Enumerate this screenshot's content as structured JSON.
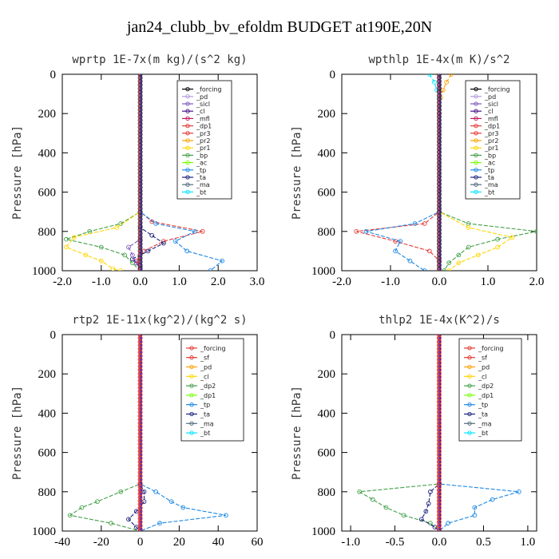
{
  "figure_title": "jan24_clubb_bv_efoldm  BUDGET at190E,20N",
  "chart_data": [
    {
      "type": "line",
      "title": "wprtp  1E-7x(m kg)/(s^2 kg)",
      "ylabel": "Pressure [hPa]",
      "xlim": [
        -2.0,
        3.0
      ],
      "ylim": [
        1000,
        0
      ],
      "x_ticks": [
        "-2.0",
        "-1.0",
        "0.0",
        "1.0",
        "2.0",
        "3.0"
      ],
      "y_ticks": [
        "0",
        "200",
        "400",
        "600",
        "800",
        "1000"
      ],
      "legend": [
        "_forcing",
        "_pd",
        "_sicl",
        "_cl",
        "_mfl",
        "_dp1",
        "_pr3",
        "_pr2",
        "_pr1",
        "_bp",
        "_ac",
        "_tp",
        "_ta",
        "_ma",
        "_bt"
      ],
      "legend_colors": [
        "#000000",
        "#b39ddb",
        "#7e57c2",
        "#4a148c",
        "#c2185b",
        "#e53935",
        "#e53935",
        "#ffa000",
        "#ffd600",
        "#43a047",
        "#76ff03",
        "#1e88e5",
        "#1a237e",
        "#546e7a",
        "#00e5ff"
      ],
      "series": [
        {
          "pressure": [
            0,
            700,
            750,
            800,
            850,
            900,
            950,
            1000
          ],
          "values": [
            0.0,
            0.0,
            0.3,
            1.6,
            0.6,
            0.1,
            -0.1,
            0.0
          ]
        },
        {
          "pressure": [
            0,
            700,
            760,
            800,
            840,
            880,
            920,
            960,
            1000
          ],
          "values": [
            0.0,
            0.0,
            -0.5,
            -1.3,
            -1.9,
            -1.0,
            -0.4,
            -0.2,
            0.0
          ]
        },
        {
          "pressure": [
            0,
            700,
            780,
            830,
            880,
            920,
            950,
            990,
            1000
          ],
          "values": [
            0.0,
            0.0,
            -0.6,
            -1.7,
            -1.9,
            -1.4,
            -1.0,
            -0.7,
            -0.5
          ]
        },
        {
          "pressure": [
            0,
            700,
            760,
            800,
            850,
            900,
            950,
            1000
          ],
          "values": [
            0.0,
            0.0,
            0.4,
            1.4,
            0.9,
            1.2,
            2.1,
            1.8
          ]
        },
        {
          "pressure": [
            0,
            780,
            820,
            860,
            900,
            940,
            980,
            1000
          ],
          "values": [
            0.0,
            0.0,
            0.3,
            0.6,
            0.2,
            -0.2,
            0.0,
            0.0
          ]
        },
        {
          "pressure": [
            0,
            840,
            880,
            920,
            960,
            1000
          ],
          "values": [
            0.0,
            0.0,
            -0.3,
            -0.2,
            -0.1,
            0.0
          ]
        }
      ],
      "series_colors": [
        "#e53935",
        "#43a047",
        "#ffd600",
        "#1e88e5",
        "#1a237e",
        "#7e57c2"
      ]
    },
    {
      "type": "line",
      "title": "wpthlp  1E-4x(m K)/s^2",
      "ylabel": "Pressure [hPa]",
      "xlim": [
        -2.0,
        2.0
      ],
      "ylim": [
        1000,
        0
      ],
      "x_ticks": [
        "-2.0",
        "-1.0",
        "0.0",
        "1.0",
        "2.0"
      ],
      "y_ticks": [
        "0",
        "200",
        "400",
        "600",
        "800",
        "1000"
      ],
      "legend": [
        "_forcing",
        "_pd",
        "_sicl",
        "_cl",
        "_mfl",
        "_dp1",
        "_pr3",
        "_pr2",
        "_pr1",
        "_bp",
        "_ac",
        "_tp",
        "_ta",
        "_ma",
        "_bt"
      ],
      "legend_colors": [
        "#000000",
        "#b39ddb",
        "#7e57c2",
        "#4a148c",
        "#c2185b",
        "#e53935",
        "#e53935",
        "#ffa000",
        "#ffd600",
        "#43a047",
        "#76ff03",
        "#1e88e5",
        "#1a237e",
        "#546e7a",
        "#00e5ff"
      ],
      "series": [
        {
          "pressure": [
            0,
            700,
            760,
            800,
            850,
            900,
            950,
            1000
          ],
          "values": [
            0.0,
            0.0,
            -0.3,
            -1.7,
            -0.9,
            -0.2,
            0.0,
            0.0
          ]
        },
        {
          "pressure": [
            0,
            700,
            760,
            800,
            840,
            880,
            920,
            960,
            1000
          ],
          "values": [
            0.0,
            0.0,
            0.6,
            2.0,
            1.2,
            0.6,
            0.4,
            0.2,
            0.1
          ]
        },
        {
          "pressure": [
            0,
            700,
            780,
            830,
            880,
            920,
            960,
            1000
          ],
          "values": [
            0.0,
            0.0,
            0.6,
            1.5,
            1.2,
            0.8,
            0.4,
            0.2
          ]
        },
        {
          "pressure": [
            0,
            700,
            760,
            800,
            850,
            900,
            950,
            1000
          ],
          "values": [
            0.0,
            0.0,
            -0.5,
            -1.5,
            -0.8,
            -0.9,
            -0.6,
            -0.3
          ]
        },
        {
          "pressure": [
            0,
            40,
            80,
            120,
            160,
            200
          ],
          "values": [
            -0.2,
            -0.1,
            -0.05,
            0.0,
            0.0,
            0.0
          ]
        },
        {
          "pressure": [
            0,
            40,
            80,
            120,
            160,
            200
          ],
          "values": [
            0.25,
            0.15,
            0.08,
            0.03,
            0.0,
            0.0
          ]
        }
      ],
      "series_colors": [
        "#e53935",
        "#43a047",
        "#ffd600",
        "#1e88e5",
        "#00e5ff",
        "#ffa000"
      ]
    },
    {
      "type": "line",
      "title": "rtp2  1E-11x(kg^2)/(kg^2 s)",
      "ylabel": "Pressure [hPa]",
      "xlim": [
        -40,
        60
      ],
      "ylim": [
        1000,
        0
      ],
      "x_ticks": [
        "-40",
        "-20",
        "0",
        "20",
        "40",
        "60"
      ],
      "y_ticks": [
        "0",
        "200",
        "400",
        "600",
        "800",
        "1000"
      ],
      "legend": [
        "_forcing",
        "_sf",
        "_pd",
        "_cl",
        "_dp2",
        "_dp1",
        "_tp",
        "_ta",
        "_ma",
        "_bt"
      ],
      "legend_colors": [
        "#e53935",
        "#e53935",
        "#ffa000",
        "#ffd600",
        "#43a047",
        "#76ff03",
        "#1e88e5",
        "#1a237e",
        "#546e7a",
        "#00e5ff"
      ],
      "series": [
        {
          "pressure": [
            0,
            760,
            800,
            850,
            880,
            920,
            960,
            1000
          ],
          "values": [
            0.0,
            0.0,
            8.0,
            16.0,
            22.0,
            44.0,
            10.0,
            0.0
          ]
        },
        {
          "pressure": [
            0,
            760,
            800,
            850,
            880,
            920,
            960,
            1000
          ],
          "values": [
            0.0,
            0.0,
            -10.0,
            -22.0,
            -30.0,
            -36.0,
            -15.0,
            0.0
          ]
        },
        {
          "pressure": [
            0,
            760,
            800,
            850,
            900,
            940,
            980,
            1000
          ],
          "values": [
            0.0,
            0.0,
            2.0,
            2.0,
            -2.0,
            -6.0,
            -2.0,
            0.0
          ]
        }
      ],
      "series_colors": [
        "#1e88e5",
        "#43a047",
        "#1a237e"
      ]
    },
    {
      "type": "line",
      "title": "thlp2  1E-4x(K^2)/s",
      "ylabel": "Pressure [hPa]",
      "xlim": [
        -1.1,
        1.1
      ],
      "ylim": [
        1000,
        0
      ],
      "x_ticks": [
        "-1.0",
        "-0.5",
        "0.0",
        "0.5",
        "1.0"
      ],
      "y_ticks": [
        "0",
        "200",
        "400",
        "600",
        "800",
        "1000"
      ],
      "legend": [
        "_forcing",
        "_sf",
        "_pd",
        "_cl",
        "_dp2",
        "_dp1",
        "_tp",
        "_ta",
        "_ma",
        "_bt"
      ],
      "legend_colors": [
        "#e53935",
        "#e53935",
        "#ffa000",
        "#ffd600",
        "#43a047",
        "#76ff03",
        "#1e88e5",
        "#1a237e",
        "#546e7a",
        "#00e5ff"
      ],
      "series": [
        {
          "pressure": [
            0,
            760,
            800,
            840,
            880,
            920,
            960,
            1000
          ],
          "values": [
            0.0,
            0.0,
            0.9,
            0.6,
            0.4,
            0.4,
            0.1,
            0.0
          ]
        },
        {
          "pressure": [
            0,
            760,
            800,
            840,
            880,
            920,
            960,
            1000
          ],
          "values": [
            0.0,
            0.0,
            -0.9,
            -0.75,
            -0.6,
            -0.4,
            -0.1,
            0.0
          ]
        },
        {
          "pressure": [
            0,
            760,
            800,
            860,
            900,
            940,
            980,
            1000
          ],
          "values": [
            0.0,
            0.0,
            -0.1,
            -0.12,
            -0.15,
            -0.2,
            -0.05,
            0.0
          ]
        }
      ],
      "series_colors": [
        "#1e88e5",
        "#43a047",
        "#1a237e"
      ]
    }
  ]
}
